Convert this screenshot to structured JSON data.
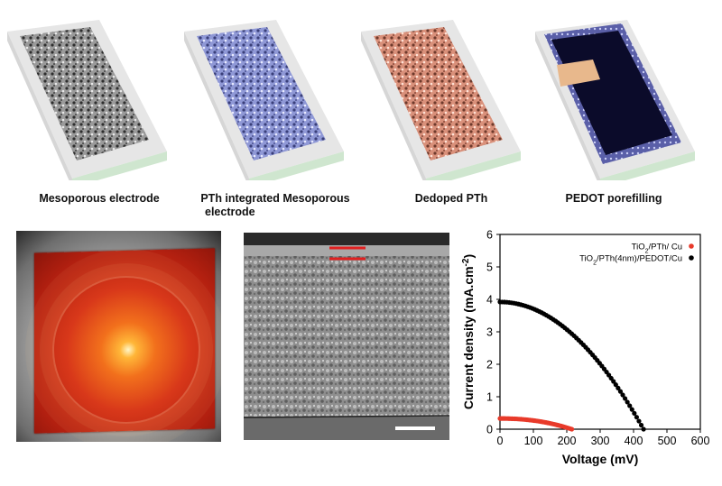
{
  "captions": {
    "mesoporous": "Mesoporous electrode",
    "pth_integrated_line1": "PTh integrated Mesoporous",
    "pth_integrated_line2": "electrode",
    "dedoped": "Dedoped PTh",
    "pedot": "PEDOT porefilling"
  },
  "colors": {
    "mesoporous": "#8a8a8a",
    "pth": "#8f98d6",
    "dedoped": "#d9907a",
    "pedot_fill": "#0b0b2a",
    "pedot_window": "#e8b88c",
    "substrate": "#e6e6e6",
    "substrate_edge": "#cfe6cf",
    "series_red": "#e83a2a",
    "series_black": "#000000"
  },
  "chart_data": {
    "type": "scatter",
    "xlabel": "Voltage (mV)",
    "ylabel": "Current density (mA.cm",
    "ylabel_sup": "-2",
    "ylabel_end": ")",
    "xlim": [
      0,
      600
    ],
    "ylim": [
      0,
      6
    ],
    "xticks": [
      "0",
      "100",
      "200",
      "300",
      "400",
      "500",
      "600"
    ],
    "yticks": [
      "0",
      "1",
      "2",
      "3",
      "4",
      "5",
      "6"
    ],
    "legend_position": "top-right",
    "series": [
      {
        "name": "TiO2/PTh/ Cu",
        "name_parts": [
          "TiO",
          "2",
          "/PTh/ Cu"
        ],
        "color": "#e83a2a",
        "jsc": 0.33,
        "voc": 215,
        "shape": 2.2
      },
      {
        "name": "TiO2/PTh(4nm)/PEDOT/Cu",
        "name_parts": [
          "TiO",
          "2",
          "/PTh(4nm)/PEDOT/Cu"
        ],
        "color": "#000000",
        "jsc": 3.92,
        "voc": 430,
        "shape": 2.0
      }
    ]
  }
}
